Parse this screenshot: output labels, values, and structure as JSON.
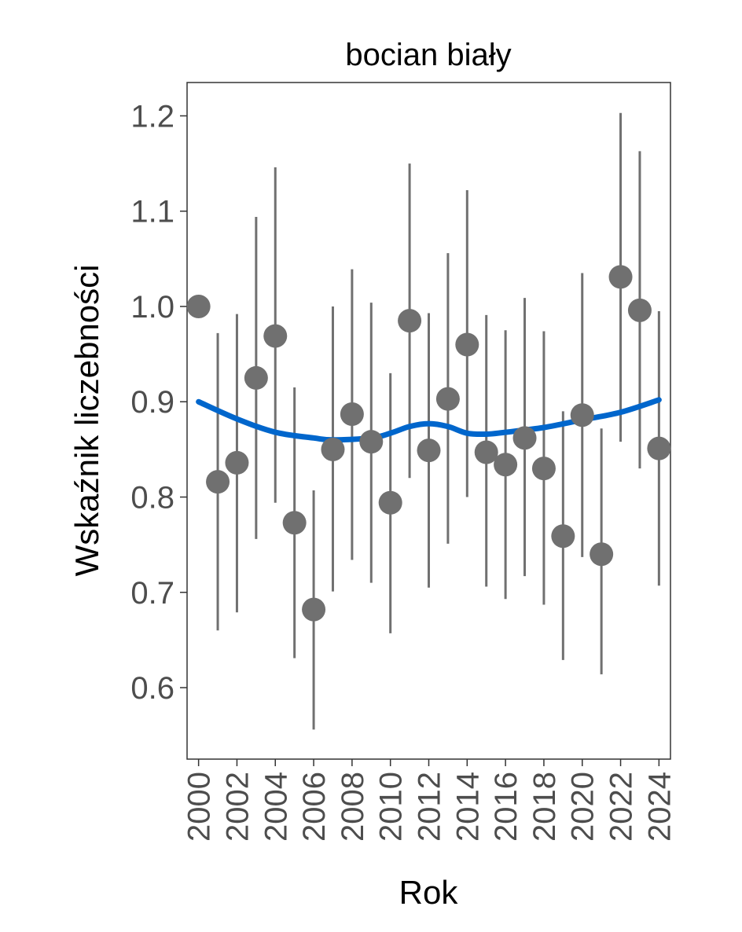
{
  "chart_data": {
    "type": "scatter",
    "title": "bocian biały",
    "xlabel": "Rok",
    "ylabel": "Wskaźnik liczebności",
    "xlim": [
      1999.4,
      2024.6
    ],
    "ylim": [
      0.525,
      1.235
    ],
    "x_ticks": [
      2000,
      2002,
      2004,
      2006,
      2008,
      2010,
      2012,
      2014,
      2016,
      2018,
      2020,
      2022,
      2024
    ],
    "x_tick_labels": [
      "2000",
      "2002",
      "2004",
      "2006",
      "2008",
      "2010",
      "2012",
      "2014",
      "2016",
      "2018",
      "2020",
      "2022",
      "2024"
    ],
    "y_ticks": [
      0.6,
      0.7,
      0.8,
      0.9,
      1.0,
      1.1,
      1.2
    ],
    "y_tick_labels": [
      "0.6",
      "0.7",
      "0.8",
      "0.9",
      "1.0",
      "1.1",
      "1.2"
    ],
    "grid": false,
    "colors": {
      "points": "#707070",
      "errorbars": "#707070",
      "trend": "#0066cc",
      "axis_text": "#4d4d4d"
    },
    "series": [
      {
        "name": "index",
        "x": [
          2000,
          2001,
          2002,
          2003,
          2004,
          2005,
          2006,
          2007,
          2008,
          2009,
          2010,
          2011,
          2012,
          2013,
          2014,
          2015,
          2016,
          2017,
          2018,
          2019,
          2020,
          2021,
          2022,
          2023,
          2024
        ],
        "y": [
          1.0,
          0.816,
          0.836,
          0.925,
          0.969,
          0.773,
          0.682,
          0.85,
          0.887,
          0.858,
          0.794,
          0.985,
          0.849,
          0.903,
          0.96,
          0.847,
          0.834,
          0.862,
          0.83,
          0.759,
          0.886,
          0.74,
          1.031,
          0.996,
          0.851
        ],
        "upper": [
          null,
          0.972,
          0.992,
          1.094,
          1.146,
          0.915,
          0.807,
          1.0,
          1.039,
          1.004,
          0.93,
          1.15,
          0.993,
          1.056,
          1.122,
          0.991,
          0.975,
          1.009,
          0.974,
          0.89,
          1.035,
          0.872,
          1.203,
          1.163,
          0.995
        ],
        "lower": [
          null,
          0.66,
          0.679,
          0.756,
          0.794,
          0.631,
          0.556,
          0.701,
          0.734,
          0.71,
          0.657,
          0.82,
          0.705,
          0.751,
          0.8,
          0.706,
          0.693,
          0.717,
          0.687,
          0.629,
          0.737,
          0.614,
          0.858,
          0.83,
          0.707
        ]
      },
      {
        "name": "trend",
        "type": "line",
        "x": [
          2000,
          2002,
          2004,
          2006,
          2007,
          2009,
          2010,
          2011,
          2012,
          2013,
          2014,
          2015,
          2016,
          2018,
          2020,
          2022,
          2024
        ],
        "y": [
          0.9,
          0.882,
          0.868,
          0.862,
          0.86,
          0.862,
          0.867,
          0.874,
          0.877,
          0.874,
          0.867,
          0.866,
          0.868,
          0.873,
          0.881,
          0.889,
          0.902
        ]
      }
    ]
  }
}
